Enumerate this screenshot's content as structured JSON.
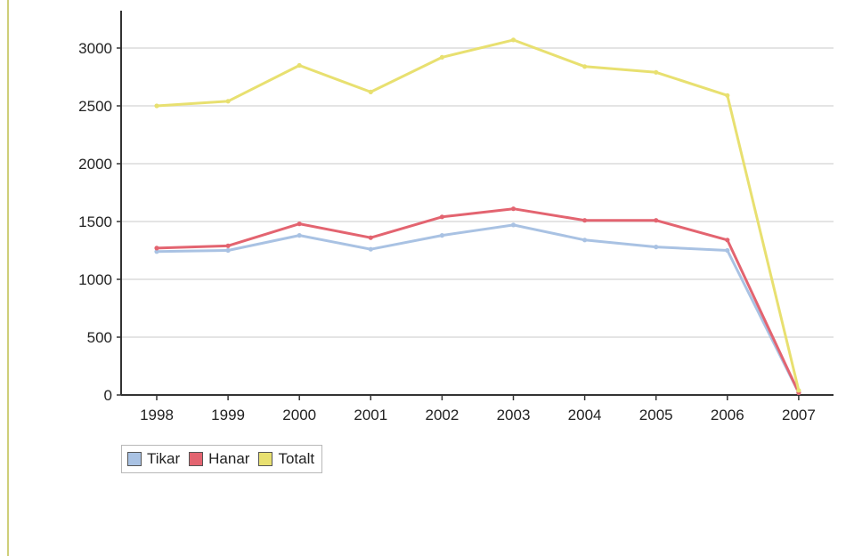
{
  "chart_data": {
    "type": "line",
    "title": "",
    "xlabel": "",
    "ylabel": "",
    "x": [
      "1998",
      "1999",
      "2000",
      "2001",
      "2002",
      "2003",
      "2004",
      "2005",
      "2006",
      "2007"
    ],
    "ylim": [
      0,
      3000
    ],
    "yticks": [
      0,
      500,
      1000,
      1500,
      2000,
      2500,
      3000
    ],
    "grid": true,
    "legend_position": "bottom-left",
    "series": [
      {
        "name": "Tikar",
        "color": "#a9c2e3",
        "values": [
          1240,
          1250,
          1380,
          1260,
          1380,
          1470,
          1340,
          1280,
          1250,
          20
        ]
      },
      {
        "name": "Hanar",
        "color": "#e36470",
        "values": [
          1270,
          1290,
          1480,
          1360,
          1540,
          1610,
          1510,
          1510,
          1340,
          20
        ]
      },
      {
        "name": "Totalt",
        "color": "#e8e070",
        "values": [
          2500,
          2540,
          2850,
          2620,
          2920,
          3070,
          2840,
          2790,
          2590,
          40
        ]
      }
    ]
  }
}
